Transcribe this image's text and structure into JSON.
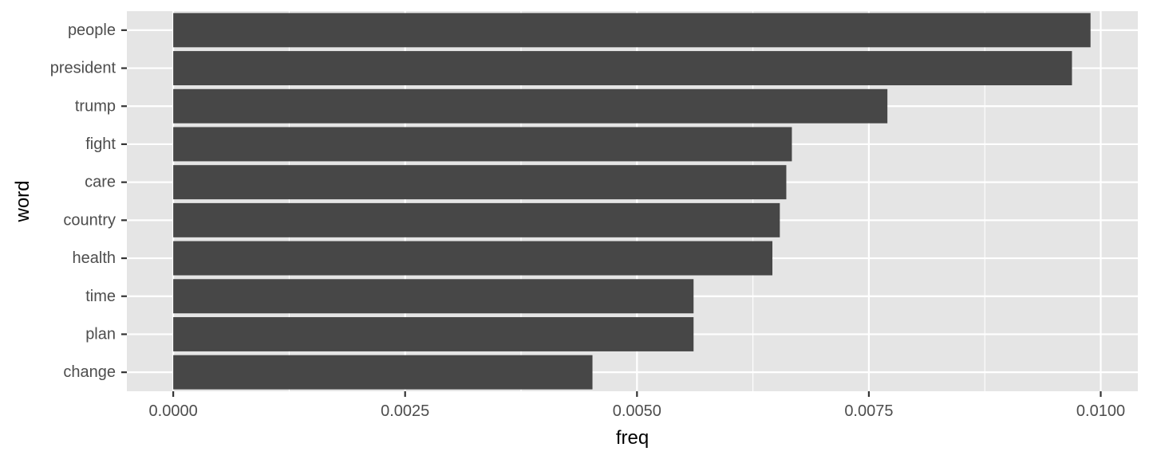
{
  "chart_data": {
    "type": "bar",
    "orientation": "horizontal",
    "categories": [
      "people",
      "president",
      "trump",
      "fight",
      "care",
      "country",
      "health",
      "time",
      "plan",
      "change"
    ],
    "values": [
      0.00989,
      0.00969,
      0.0077,
      0.00667,
      0.00661,
      0.00654,
      0.00646,
      0.00561,
      0.00561,
      0.00452
    ],
    "xlabel": "freq",
    "ylabel": "word",
    "xlim": [
      -0.0005,
      0.0104
    ],
    "x_ticks": [
      0.0,
      0.0025,
      0.005,
      0.0075,
      0.01
    ],
    "x_tick_labels": [
      "0.0000",
      "0.0025",
      "0.0050",
      "0.0075",
      "0.0100"
    ],
    "grid": true,
    "colors": {
      "panel_background": "#e5e5e5",
      "gridline": "#ffffff",
      "bar_fill": "#474747",
      "tick_text": "#4d4d4d",
      "axis_title": "#000000"
    }
  }
}
